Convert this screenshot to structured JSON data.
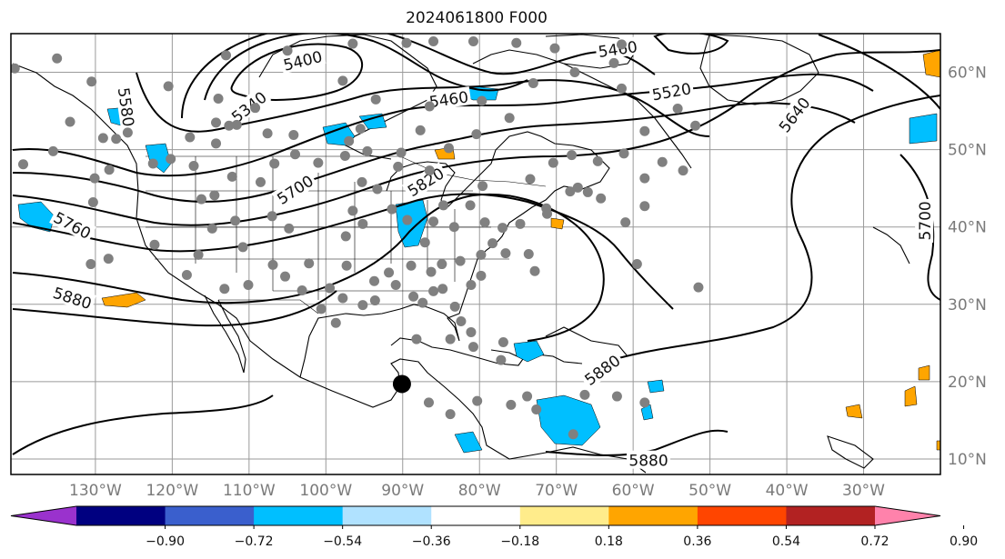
{
  "title": "2024061800 F000",
  "map": {
    "lon_ticks": [
      {
        "label": "130°W",
        "lon": -130
      },
      {
        "label": "120°W",
        "lon": -120
      },
      {
        "label": "110°W",
        "lon": -110
      },
      {
        "label": "100°W",
        "lon": -100
      },
      {
        "label": "90°W",
        "lon": -90
      },
      {
        "label": "80°W",
        "lon": -80
      },
      {
        "label": "70°W",
        "lon": -70
      },
      {
        "label": "60°W",
        "lon": -60
      },
      {
        "label": "50°W",
        "lon": -50
      },
      {
        "label": "40°W",
        "lon": -40
      },
      {
        "label": "30°W",
        "lon": -30
      }
    ],
    "lat_ticks": [
      {
        "label": "60°N",
        "lat": 60
      },
      {
        "label": "50°N",
        "lat": 50
      },
      {
        "label": "40°N",
        "lat": 40
      },
      {
        "label": "30°N",
        "lat": 30
      },
      {
        "label": "20°N",
        "lat": 20
      },
      {
        "label": "10°N",
        "lat": 10
      }
    ],
    "extent": {
      "lon_min": -141,
      "lon_max": -20,
      "lat_min": 8,
      "lat_max": 65
    },
    "contour_labels": [
      {
        "text": "5400",
        "lon": -103,
        "lat": 61.5,
        "rot": -14
      },
      {
        "text": "5340",
        "lon": -110,
        "lat": 55.5,
        "rot": -38
      },
      {
        "text": "5460",
        "lon": -84,
        "lat": 56.5,
        "rot": -8
      },
      {
        "text": "5580",
        "lon": -126,
        "lat": 55.5,
        "rot": 82
      },
      {
        "text": "5700",
        "lon": -104,
        "lat": 44.8,
        "rot": -33
      },
      {
        "text": "5820",
        "lon": -87,
        "lat": 45.8,
        "rot": -32
      },
      {
        "text": "5760",
        "lon": -133,
        "lat": 40.2,
        "rot": 28
      },
      {
        "text": "5880",
        "lon": -133,
        "lat": 30.8,
        "rot": 18
      },
      {
        "text": "5880",
        "lon": -64,
        "lat": 21.5,
        "rot": -36
      },
      {
        "text": "5880",
        "lon": -58,
        "lat": 9.8,
        "rot": 0
      },
      {
        "text": "5460",
        "lon": -62,
        "lat": 63,
        "rot": -8
      },
      {
        "text": "5520",
        "lon": -55,
        "lat": 57.5,
        "rot": -10
      },
      {
        "text": "5640",
        "lon": -39,
        "lat": 54.5,
        "rot": -52
      },
      {
        "text": "5700",
        "lon": -22,
        "lat": 40.8,
        "rot": -90
      }
    ],
    "storm_marker": {
      "lon": -90.1,
      "lat": 19.7
    },
    "stations": [
      [
        -140.5,
        60.5
      ],
      [
        -135,
        61.8
      ],
      [
        -130.5,
        58.8
      ],
      [
        -113,
        62.2
      ],
      [
        -105,
        62.8
      ],
      [
        -96.5,
        63.7
      ],
      [
        -89.5,
        63.8
      ],
      [
        -86,
        64.0
      ],
      [
        -80.8,
        64.0
      ],
      [
        -75.2,
        63.8
      ],
      [
        -70.2,
        63.1
      ],
      [
        -62.5,
        61.2
      ],
      [
        -61.5,
        63.6
      ],
      [
        -133.3,
        53.6
      ],
      [
        -129,
        51.5
      ],
      [
        -125.8,
        52.2
      ],
      [
        -120.5,
        58.2
      ],
      [
        -117.7,
        51.6
      ],
      [
        -114,
        56.6
      ],
      [
        -114.3,
        53.5
      ],
      [
        -114.3,
        50.8
      ],
      [
        -112.6,
        53.1
      ],
      [
        -111.6,
        53.2
      ],
      [
        -109.2,
        55.4
      ],
      [
        -107.6,
        52.1
      ],
      [
        -104.2,
        51.9
      ],
      [
        -104,
        49.4
      ],
      [
        -97.8,
        58.9
      ],
      [
        -95.5,
        52.7
      ],
      [
        -93.5,
        56.5
      ],
      [
        -94.6,
        49.8
      ],
      [
        -90.2,
        49.6
      ],
      [
        -87.7,
        52.5
      ],
      [
        -86.5,
        55.6
      ],
      [
        -84,
        50.2
      ],
      [
        -80.4,
        52.0
      ],
      [
        -76.1,
        54.1
      ],
      [
        -73,
        58.6
      ],
      [
        -79.7,
        56.3
      ],
      [
        -67.6,
        60.0
      ],
      [
        -61.5,
        57.9
      ],
      [
        -58.5,
        52.4
      ],
      [
        -56.2,
        48.4
      ],
      [
        -53.5,
        47.3
      ],
      [
        -51.9,
        53.1
      ],
      [
        -54.2,
        55.3
      ],
      [
        -139.4,
        48.1
      ],
      [
        -135.5,
        49.8
      ],
      [
        -130.1,
        46.3
      ],
      [
        -130.3,
        43.2
      ],
      [
        -127.3,
        51.4
      ],
      [
        -128.2,
        47.4
      ],
      [
        -122.5,
        48.2
      ],
      [
        -120.2,
        48.8
      ],
      [
        -117.2,
        47.9
      ],
      [
        -114.5,
        44.1
      ],
      [
        -116.2,
        43.6
      ],
      [
        -112.2,
        46.5
      ],
      [
        -108.5,
        45.8
      ],
      [
        -106.7,
        48.2
      ],
      [
        -101,
        48.3
      ],
      [
        -97.5,
        49.2
      ],
      [
        -97,
        51.1
      ],
      [
        -95.3,
        45.8
      ],
      [
        -93.3,
        44.9
      ],
      [
        -90.6,
        47.8
      ],
      [
        -86.5,
        47.3
      ],
      [
        -84.7,
        42.8
      ],
      [
        -81.2,
        42.8
      ],
      [
        -79.6,
        45.3
      ],
      [
        -73.4,
        46.2
      ],
      [
        -71.3,
        42.4
      ],
      [
        -70.4,
        48.3
      ],
      [
        -68,
        49.3
      ],
      [
        -64.6,
        48.5
      ],
      [
        -61.2,
        49.5
      ],
      [
        -58.5,
        46.3
      ],
      [
        -64.2,
        43.7
      ],
      [
        -67.2,
        45.1
      ],
      [
        -61,
        40.6
      ],
      [
        -65.9,
        44.5
      ],
      [
        -68.2,
        44.6
      ],
      [
        -130.6,
        35.2
      ],
      [
        -122.3,
        37.7
      ],
      [
        -116.6,
        36.4
      ],
      [
        -114.8,
        39.8
      ],
      [
        -111.8,
        40.8
      ],
      [
        -110.8,
        37.4
      ],
      [
        -107,
        41.4
      ],
      [
        -104.8,
        39.8
      ],
      [
        -97.4,
        38.8
      ],
      [
        -96.5,
        42.1
      ],
      [
        -95.2,
        40.4
      ],
      [
        -91.4,
        42.3
      ],
      [
        -89.4,
        40.9
      ],
      [
        -87.1,
        38.0
      ],
      [
        -86,
        40.7
      ],
      [
        -83.3,
        40.0
      ],
      [
        -79.3,
        40.6
      ],
      [
        -77,
        39.9
      ],
      [
        -74.7,
        40.4
      ],
      [
        -71.2,
        41.7
      ],
      [
        -73.6,
        36.5
      ],
      [
        -128.3,
        35.9
      ],
      [
        -118.1,
        33.8
      ],
      [
        -113.2,
        32.0
      ],
      [
        -110.1,
        32.5
      ],
      [
        -106.9,
        35.1
      ],
      [
        -105.3,
        33.6
      ],
      [
        -102.2,
        35.3
      ],
      [
        -99.5,
        32.1
      ],
      [
        -97.3,
        35.0
      ],
      [
        -93.7,
        33.0
      ],
      [
        -91.8,
        34.1
      ],
      [
        -88.9,
        35.0
      ],
      [
        -86.3,
        34.2
      ],
      [
        -84.9,
        35.2
      ],
      [
        -82.5,
        35.6
      ],
      [
        -79.8,
        36.4
      ],
      [
        -78.3,
        37.9
      ],
      [
        -76.6,
        36.6
      ],
      [
        -79.8,
        33.7
      ],
      [
        -72.8,
        34.3
      ],
      [
        -84.8,
        32.0
      ],
      [
        -81.1,
        32.5
      ],
      [
        -88.6,
        31.0
      ],
      [
        -90.9,
        32.5
      ],
      [
        -95.2,
        29.9
      ],
      [
        -97.8,
        30.8
      ],
      [
        -100.6,
        29.4
      ],
      [
        -103.1,
        31.8
      ],
      [
        -93.6,
        30.5
      ],
      [
        -87.4,
        30.2
      ],
      [
        -86,
        31.7
      ],
      [
        -83.2,
        29.7
      ],
      [
        -82.4,
        27.8
      ],
      [
        -81.1,
        26.4
      ],
      [
        -98.7,
        27.6
      ],
      [
        -83.8,
        25.5
      ],
      [
        -80.8,
        24.5
      ],
      [
        -76.9,
        25.1
      ],
      [
        -88.2,
        25.5
      ],
      [
        -77.2,
        22.8
      ],
      [
        -80.3,
        17.5
      ],
      [
        -73.8,
        18.1
      ],
      [
        -66.3,
        18.3
      ],
      [
        -62.1,
        18.1
      ],
      [
        -58.5,
        17.3
      ],
      [
        -72.6,
        16.4
      ],
      [
        -75.9,
        17.0
      ],
      [
        -83.8,
        15.8
      ],
      [
        -86.6,
        17.3
      ],
      [
        -67.8,
        13.2
      ],
      [
        -51.5,
        32.2
      ],
      [
        -59.5,
        35.2
      ],
      [
        -58.5,
        42.7
      ]
    ]
  },
  "colorbar": {
    "ticks": [
      "−0.90",
      "−0.72",
      "−0.54",
      "−0.36",
      "−0.18",
      "0.18",
      "0.36",
      "0.54",
      "0.72",
      "0.90"
    ],
    "colors": [
      "#9a32cd",
      "#000080",
      "#3a5fcd",
      "#00bfff",
      "#b0e2ff",
      "#ffffff",
      "#ffec8b",
      "#ffa500",
      "#ff4500",
      "#b22222",
      "#ff82ab"
    ]
  }
}
